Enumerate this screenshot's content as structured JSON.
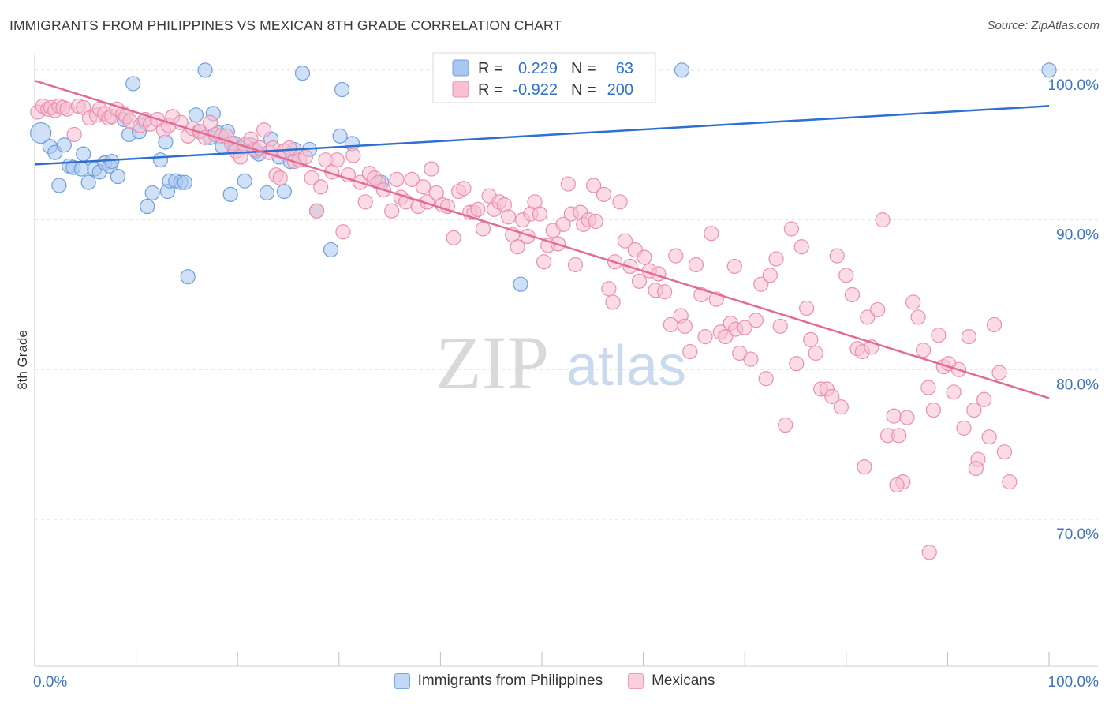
{
  "header": {
    "title": "IMMIGRANTS FROM PHILIPPINES VS MEXICAN 8TH GRADE CORRELATION CHART",
    "source": "Source: ZipAtlas.com"
  },
  "watermark": {
    "zip": "ZIP",
    "atlas": "atlas"
  },
  "legend_top": {
    "rows": [
      {
        "r_label": "R =",
        "r_value": "0.229",
        "n_label": "N =",
        "n_value": "63",
        "color": "#a9c8f0",
        "stroke": "#6f9fe0"
      },
      {
        "r_label": "R =",
        "r_value": "-0.922",
        "n_label": "N =",
        "n_value": "200",
        "color": "#f8c0d2",
        "stroke": "#ec8fad"
      }
    ]
  },
  "legend_bottom": {
    "items": [
      {
        "label": "Immigrants from Philippines",
        "color": "#c2d8f6",
        "stroke": "#7aa5e3"
      },
      {
        "label": "Mexicans",
        "color": "#fbd0de",
        "stroke": "#ee9cb8"
      }
    ]
  },
  "chart_data": {
    "type": "scatter",
    "title": "IMMIGRANTS FROM PHILIPPINES VS MEXICAN 8TH GRADE CORRELATION CHART",
    "xlabel": "",
    "ylabel": "8th Grade",
    "xlim": [
      0,
      100
    ],
    "ylim": [
      60.2,
      101.1
    ],
    "x_tick_labels": [
      "0.0%",
      "100.0%"
    ],
    "y_ticks": [
      70,
      80,
      90,
      100
    ],
    "y_tick_labels": [
      "70.0%",
      "80.0%",
      "90.0%",
      "100.0%"
    ],
    "grid": true,
    "legend_position": "top-center",
    "series": [
      {
        "name": "Immigrants from Philippines",
        "color": "#6f9fe0",
        "fill": "#a9c8f0",
        "trend": {
          "x": [
            0,
            100
          ],
          "y": [
            93.7,
            97.6
          ]
        },
        "points": [
          [
            0.6,
            95.8
          ],
          [
            1.5,
            94.9
          ],
          [
            2.0,
            94.5
          ],
          [
            2.4,
            92.3
          ],
          [
            2.9,
            95.0
          ],
          [
            3.4,
            93.6
          ],
          [
            3.8,
            93.5
          ],
          [
            4.6,
            93.4
          ],
          [
            4.8,
            94.4
          ],
          [
            5.3,
            92.5
          ],
          [
            5.9,
            93.4
          ],
          [
            6.4,
            93.2
          ],
          [
            6.9,
            93.8
          ],
          [
            7.4,
            93.6
          ],
          [
            7.6,
            93.9
          ],
          [
            8.2,
            92.9
          ],
          [
            8.8,
            96.7
          ],
          [
            9.3,
            95.7
          ],
          [
            9.7,
            99.1
          ],
          [
            10.3,
            95.9
          ],
          [
            10.8,
            96.6
          ],
          [
            11.1,
            90.9
          ],
          [
            11.6,
            91.8
          ],
          [
            12.4,
            94.0
          ],
          [
            12.9,
            95.2
          ],
          [
            13.1,
            91.9
          ],
          [
            13.3,
            92.6
          ],
          [
            13.9,
            92.6
          ],
          [
            14.4,
            92.5
          ],
          [
            14.8,
            92.5
          ],
          [
            15.1,
            86.2
          ],
          [
            15.9,
            97.0
          ],
          [
            16.2,
            95.9
          ],
          [
            16.8,
            100.0
          ],
          [
            17.3,
            95.5
          ],
          [
            17.6,
            97.1
          ],
          [
            18.1,
            95.8
          ],
          [
            18.5,
            94.9
          ],
          [
            19.0,
            95.9
          ],
          [
            19.3,
            91.7
          ],
          [
            19.7,
            95.1
          ],
          [
            20.3,
            94.8
          ],
          [
            20.7,
            92.6
          ],
          [
            21.3,
            95.0
          ],
          [
            21.8,
            94.6
          ],
          [
            22.1,
            94.4
          ],
          [
            22.9,
            91.8
          ],
          [
            23.3,
            95.4
          ],
          [
            24.1,
            94.2
          ],
          [
            24.6,
            91.9
          ],
          [
            25.2,
            93.9
          ],
          [
            25.6,
            94.7
          ],
          [
            26.4,
            99.8
          ],
          [
            27.1,
            94.7
          ],
          [
            27.8,
            90.6
          ],
          [
            29.2,
            88.0
          ],
          [
            30.1,
            95.6
          ],
          [
            30.3,
            98.7
          ],
          [
            31.3,
            95.1
          ],
          [
            34.2,
            92.5
          ],
          [
            47.9,
            85.7
          ],
          [
            60.0,
            100.0
          ],
          [
            63.8,
            100.0
          ],
          [
            100.0,
            100.0
          ]
        ]
      },
      {
        "name": "Mexicans",
        "color": "#ec8fad",
        "fill": "#f8c0d2",
        "trend": {
          "x": [
            0,
            100
          ],
          "y": [
            99.3,
            78.1
          ]
        },
        "points": [
          [
            0.3,
            97.2
          ],
          [
            0.8,
            97.6
          ],
          [
            1.3,
            97.4
          ],
          [
            1.6,
            97.5
          ],
          [
            2.0,
            97.3
          ],
          [
            2.4,
            97.6
          ],
          [
            2.8,
            97.5
          ],
          [
            3.2,
            97.4
          ],
          [
            3.9,
            95.7
          ],
          [
            4.3,
            97.6
          ],
          [
            4.8,
            97.5
          ],
          [
            5.4,
            96.8
          ],
          [
            6.1,
            97.0
          ],
          [
            6.4,
            97.4
          ],
          [
            6.9,
            97.1
          ],
          [
            7.3,
            96.8
          ],
          [
            7.6,
            96.9
          ],
          [
            8.1,
            97.4
          ],
          [
            8.7,
            97.1
          ],
          [
            9.0,
            96.9
          ],
          [
            9.4,
            96.6
          ],
          [
            10.4,
            96.3
          ],
          [
            10.9,
            96.7
          ],
          [
            11.4,
            96.4
          ],
          [
            12.1,
            96.7
          ],
          [
            12.7,
            96.0
          ],
          [
            13.2,
            96.3
          ],
          [
            13.6,
            96.9
          ],
          [
            14.4,
            96.5
          ],
          [
            15.1,
            95.6
          ],
          [
            15.6,
            96.1
          ],
          [
            16.3,
            95.9
          ],
          [
            16.8,
            95.5
          ],
          [
            17.3,
            96.5
          ],
          [
            17.8,
            95.7
          ],
          [
            18.4,
            95.6
          ],
          [
            18.9,
            95.6
          ],
          [
            19.4,
            95.1
          ],
          [
            19.8,
            94.6
          ],
          [
            20.3,
            94.2
          ],
          [
            20.7,
            95.0
          ],
          [
            21.3,
            95.4
          ],
          [
            21.7,
            94.7
          ],
          [
            22.2,
            94.8
          ],
          [
            22.6,
            96.0
          ],
          [
            23.1,
            94.5
          ],
          [
            23.5,
            94.8
          ],
          [
            23.8,
            93.0
          ],
          [
            24.2,
            92.8
          ],
          [
            24.6,
            94.6
          ],
          [
            25.1,
            94.8
          ],
          [
            25.6,
            93.9
          ],
          [
            26.1,
            94.0
          ],
          [
            26.7,
            94.2
          ],
          [
            27.3,
            92.8
          ],
          [
            27.8,
            90.6
          ],
          [
            28.2,
            92.2
          ],
          [
            28.7,
            94.0
          ],
          [
            29.3,
            93.2
          ],
          [
            29.8,
            94.0
          ],
          [
            30.4,
            89.2
          ],
          [
            30.9,
            93.0
          ],
          [
            31.4,
            94.3
          ],
          [
            32.1,
            92.5
          ],
          [
            32.6,
            91.2
          ],
          [
            33.0,
            93.1
          ],
          [
            33.5,
            92.8
          ],
          [
            33.9,
            92.5
          ],
          [
            34.4,
            92.0
          ],
          [
            35.2,
            90.6
          ],
          [
            35.7,
            92.7
          ],
          [
            36.1,
            91.5
          ],
          [
            36.6,
            91.2
          ],
          [
            37.2,
            92.7
          ],
          [
            37.8,
            90.9
          ],
          [
            38.3,
            92.2
          ],
          [
            38.7,
            91.2
          ],
          [
            39.1,
            93.4
          ],
          [
            39.6,
            91.8
          ],
          [
            40.2,
            91.0
          ],
          [
            40.7,
            90.9
          ],
          [
            41.3,
            88.8
          ],
          [
            41.8,
            91.9
          ],
          [
            42.3,
            92.1
          ],
          [
            42.9,
            90.5
          ],
          [
            43.3,
            90.5
          ],
          [
            43.7,
            90.7
          ],
          [
            44.2,
            89.4
          ],
          [
            44.8,
            91.6
          ],
          [
            45.3,
            90.7
          ],
          [
            45.8,
            91.2
          ],
          [
            46.3,
            91.0
          ],
          [
            46.7,
            90.2
          ],
          [
            47.1,
            89.0
          ],
          [
            47.6,
            88.2
          ],
          [
            48.1,
            90.0
          ],
          [
            48.6,
            88.9
          ],
          [
            48.9,
            90.4
          ],
          [
            49.3,
            91.2
          ],
          [
            49.8,
            90.4
          ],
          [
            50.2,
            87.2
          ],
          [
            50.6,
            88.3
          ],
          [
            51.1,
            89.3
          ],
          [
            51.6,
            88.4
          ],
          [
            52.1,
            89.7
          ],
          [
            52.6,
            92.4
          ],
          [
            52.9,
            90.4
          ],
          [
            53.3,
            87.0
          ],
          [
            53.8,
            90.5
          ],
          [
            54.1,
            89.7
          ],
          [
            54.6,
            90.0
          ],
          [
            55.1,
            92.3
          ],
          [
            55.3,
            89.9
          ],
          [
            56.1,
            91.7
          ],
          [
            56.6,
            85.4
          ],
          [
            57.2,
            87.2
          ],
          [
            57.7,
            91.2
          ],
          [
            58.2,
            88.6
          ],
          [
            58.7,
            86.9
          ],
          [
            59.2,
            88.0
          ],
          [
            59.6,
            85.9
          ],
          [
            60.1,
            87.5
          ],
          [
            60.6,
            86.6
          ],
          [
            61.2,
            85.3
          ],
          [
            61.5,
            86.4
          ],
          [
            62.1,
            85.2
          ],
          [
            62.7,
            83.0
          ],
          [
            63.2,
            87.6
          ],
          [
            63.7,
            83.6
          ],
          [
            64.1,
            82.9
          ],
          [
            64.6,
            81.2
          ],
          [
            65.2,
            87.0
          ],
          [
            65.7,
            85.0
          ],
          [
            66.1,
            82.2
          ],
          [
            66.7,
            89.1
          ],
          [
            67.2,
            84.7
          ],
          [
            67.6,
            82.5
          ],
          [
            68.1,
            82.2
          ],
          [
            68.6,
            83.1
          ],
          [
            69.1,
            82.7
          ],
          [
            69.5,
            81.1
          ],
          [
            70.0,
            82.8
          ],
          [
            70.6,
            80.7
          ],
          [
            71.1,
            83.3
          ],
          [
            71.6,
            85.7
          ],
          [
            72.1,
            79.4
          ],
          [
            72.5,
            86.3
          ],
          [
            73.1,
            87.4
          ],
          [
            73.5,
            82.9
          ],
          [
            74.0,
            76.3
          ],
          [
            74.6,
            89.4
          ],
          [
            75.1,
            80.4
          ],
          [
            75.6,
            88.2
          ],
          [
            76.1,
            84.1
          ],
          [
            76.5,
            82.0
          ],
          [
            77.0,
            81.1
          ],
          [
            77.5,
            78.7
          ],
          [
            78.1,
            78.7
          ],
          [
            78.6,
            78.2
          ],
          [
            79.1,
            87.6
          ],
          [
            79.5,
            77.5
          ],
          [
            80.0,
            86.3
          ],
          [
            80.6,
            85.0
          ],
          [
            81.1,
            81.4
          ],
          [
            81.6,
            81.2
          ],
          [
            82.1,
            83.5
          ],
          [
            82.5,
            81.5
          ],
          [
            83.1,
            84.0
          ],
          [
            83.6,
            90.0
          ],
          [
            84.1,
            75.6
          ],
          [
            84.7,
            76.9
          ],
          [
            85.2,
            75.6
          ],
          [
            85.6,
            72.5
          ],
          [
            86.0,
            76.8
          ],
          [
            86.6,
            84.5
          ],
          [
            87.1,
            83.5
          ],
          [
            87.6,
            81.3
          ],
          [
            88.1,
            78.8
          ],
          [
            88.6,
            77.3
          ],
          [
            89.1,
            82.3
          ],
          [
            89.6,
            80.2
          ],
          [
            90.1,
            80.4
          ],
          [
            90.6,
            78.5
          ],
          [
            91.1,
            80.0
          ],
          [
            91.6,
            76.1
          ],
          [
            92.1,
            82.2
          ],
          [
            92.6,
            77.3
          ],
          [
            93.0,
            74.0
          ],
          [
            93.6,
            78.0
          ],
          [
            94.1,
            75.5
          ],
          [
            94.6,
            83.0
          ],
          [
            95.1,
            79.8
          ],
          [
            95.6,
            74.5
          ],
          [
            96.1,
            72.5
          ],
          [
            81.8,
            73.5
          ],
          [
            85.0,
            72.3
          ],
          [
            92.8,
            73.4
          ],
          [
            88.2,
            67.8
          ],
          [
            69.0,
            86.9
          ],
          [
            57.0,
            84.5
          ]
        ]
      }
    ]
  }
}
